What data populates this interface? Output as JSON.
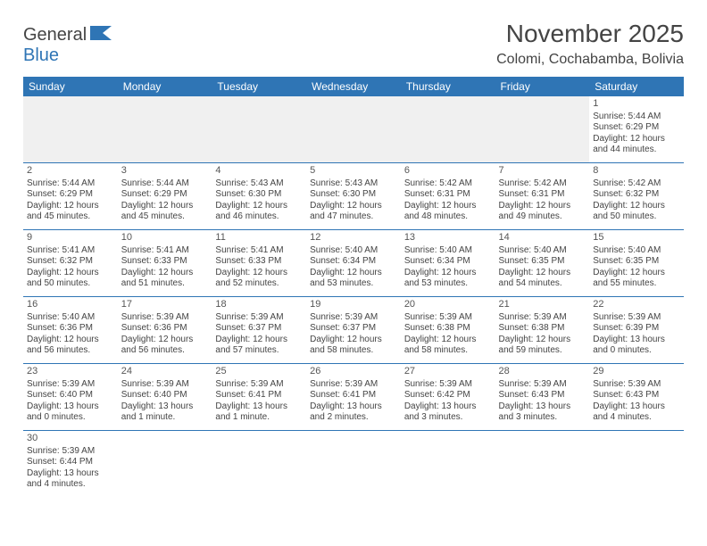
{
  "logo": {
    "general": "General",
    "blue": "Blue"
  },
  "title": "November 2025",
  "location": "Colomi, Cochabamba, Bolivia",
  "colors": {
    "header_bg": "#2f75b5",
    "header_fg": "#ffffff",
    "empty_bg": "#f0f0f0",
    "rule": "#2f75b5",
    "text": "#444444"
  },
  "day_headers": [
    "Sunday",
    "Monday",
    "Tuesday",
    "Wednesday",
    "Thursday",
    "Friday",
    "Saturday"
  ],
  "weeks": [
    [
      null,
      null,
      null,
      null,
      null,
      null,
      {
        "n": "1",
        "sr": "Sunrise: 5:44 AM",
        "ss": "Sunset: 6:29 PM",
        "dl": "Daylight: 12 hours and 44 minutes."
      }
    ],
    [
      {
        "n": "2",
        "sr": "Sunrise: 5:44 AM",
        "ss": "Sunset: 6:29 PM",
        "dl": "Daylight: 12 hours and 45 minutes."
      },
      {
        "n": "3",
        "sr": "Sunrise: 5:44 AM",
        "ss": "Sunset: 6:29 PM",
        "dl": "Daylight: 12 hours and 45 minutes."
      },
      {
        "n": "4",
        "sr": "Sunrise: 5:43 AM",
        "ss": "Sunset: 6:30 PM",
        "dl": "Daylight: 12 hours and 46 minutes."
      },
      {
        "n": "5",
        "sr": "Sunrise: 5:43 AM",
        "ss": "Sunset: 6:30 PM",
        "dl": "Daylight: 12 hours and 47 minutes."
      },
      {
        "n": "6",
        "sr": "Sunrise: 5:42 AM",
        "ss": "Sunset: 6:31 PM",
        "dl": "Daylight: 12 hours and 48 minutes."
      },
      {
        "n": "7",
        "sr": "Sunrise: 5:42 AM",
        "ss": "Sunset: 6:31 PM",
        "dl": "Daylight: 12 hours and 49 minutes."
      },
      {
        "n": "8",
        "sr": "Sunrise: 5:42 AM",
        "ss": "Sunset: 6:32 PM",
        "dl": "Daylight: 12 hours and 50 minutes."
      }
    ],
    [
      {
        "n": "9",
        "sr": "Sunrise: 5:41 AM",
        "ss": "Sunset: 6:32 PM",
        "dl": "Daylight: 12 hours and 50 minutes."
      },
      {
        "n": "10",
        "sr": "Sunrise: 5:41 AM",
        "ss": "Sunset: 6:33 PM",
        "dl": "Daylight: 12 hours and 51 minutes."
      },
      {
        "n": "11",
        "sr": "Sunrise: 5:41 AM",
        "ss": "Sunset: 6:33 PM",
        "dl": "Daylight: 12 hours and 52 minutes."
      },
      {
        "n": "12",
        "sr": "Sunrise: 5:40 AM",
        "ss": "Sunset: 6:34 PM",
        "dl": "Daylight: 12 hours and 53 minutes."
      },
      {
        "n": "13",
        "sr": "Sunrise: 5:40 AM",
        "ss": "Sunset: 6:34 PM",
        "dl": "Daylight: 12 hours and 53 minutes."
      },
      {
        "n": "14",
        "sr": "Sunrise: 5:40 AM",
        "ss": "Sunset: 6:35 PM",
        "dl": "Daylight: 12 hours and 54 minutes."
      },
      {
        "n": "15",
        "sr": "Sunrise: 5:40 AM",
        "ss": "Sunset: 6:35 PM",
        "dl": "Daylight: 12 hours and 55 minutes."
      }
    ],
    [
      {
        "n": "16",
        "sr": "Sunrise: 5:40 AM",
        "ss": "Sunset: 6:36 PM",
        "dl": "Daylight: 12 hours and 56 minutes."
      },
      {
        "n": "17",
        "sr": "Sunrise: 5:39 AM",
        "ss": "Sunset: 6:36 PM",
        "dl": "Daylight: 12 hours and 56 minutes."
      },
      {
        "n": "18",
        "sr": "Sunrise: 5:39 AM",
        "ss": "Sunset: 6:37 PM",
        "dl": "Daylight: 12 hours and 57 minutes."
      },
      {
        "n": "19",
        "sr": "Sunrise: 5:39 AM",
        "ss": "Sunset: 6:37 PM",
        "dl": "Daylight: 12 hours and 58 minutes."
      },
      {
        "n": "20",
        "sr": "Sunrise: 5:39 AM",
        "ss": "Sunset: 6:38 PM",
        "dl": "Daylight: 12 hours and 58 minutes."
      },
      {
        "n": "21",
        "sr": "Sunrise: 5:39 AM",
        "ss": "Sunset: 6:38 PM",
        "dl": "Daylight: 12 hours and 59 minutes."
      },
      {
        "n": "22",
        "sr": "Sunrise: 5:39 AM",
        "ss": "Sunset: 6:39 PM",
        "dl": "Daylight: 13 hours and 0 minutes."
      }
    ],
    [
      {
        "n": "23",
        "sr": "Sunrise: 5:39 AM",
        "ss": "Sunset: 6:40 PM",
        "dl": "Daylight: 13 hours and 0 minutes."
      },
      {
        "n": "24",
        "sr": "Sunrise: 5:39 AM",
        "ss": "Sunset: 6:40 PM",
        "dl": "Daylight: 13 hours and 1 minute."
      },
      {
        "n": "25",
        "sr": "Sunrise: 5:39 AM",
        "ss": "Sunset: 6:41 PM",
        "dl": "Daylight: 13 hours and 1 minute."
      },
      {
        "n": "26",
        "sr": "Sunrise: 5:39 AM",
        "ss": "Sunset: 6:41 PM",
        "dl": "Daylight: 13 hours and 2 minutes."
      },
      {
        "n": "27",
        "sr": "Sunrise: 5:39 AM",
        "ss": "Sunset: 6:42 PM",
        "dl": "Daylight: 13 hours and 3 minutes."
      },
      {
        "n": "28",
        "sr": "Sunrise: 5:39 AM",
        "ss": "Sunset: 6:43 PM",
        "dl": "Daylight: 13 hours and 3 minutes."
      },
      {
        "n": "29",
        "sr": "Sunrise: 5:39 AM",
        "ss": "Sunset: 6:43 PM",
        "dl": "Daylight: 13 hours and 4 minutes."
      }
    ],
    [
      {
        "n": "30",
        "sr": "Sunrise: 5:39 AM",
        "ss": "Sunset: 6:44 PM",
        "dl": "Daylight: 13 hours and 4 minutes."
      },
      null,
      null,
      null,
      null,
      null,
      null
    ]
  ]
}
